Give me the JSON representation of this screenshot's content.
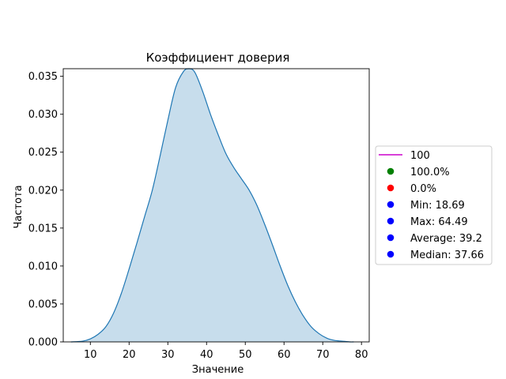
{
  "chart_data": {
    "type": "area",
    "title": "Коэффициент доверия",
    "xlabel": "Значение",
    "ylabel": "Частота",
    "xlim": [
      3,
      82
    ],
    "ylim": [
      0,
      0.036
    ],
    "xticks": [
      "10",
      "20",
      "30",
      "40",
      "50",
      "60",
      "70",
      "80"
    ],
    "yticks": [
      "0.000",
      "0.005",
      "0.010",
      "0.015",
      "0.020",
      "0.025",
      "0.030",
      "0.035"
    ],
    "grid": false,
    "legend_position": "center-right outside",
    "series": [
      {
        "style": "kde-filled",
        "color": "#1f77b4",
        "x": [
          5,
          8,
          10,
          12,
          14,
          16,
          18,
          20,
          22,
          24,
          26,
          28,
          30,
          32,
          34,
          35.5,
          37,
          39,
          41,
          43,
          45,
          47,
          49,
          51,
          53,
          55,
          57,
          59,
          61,
          63,
          65,
          67,
          69,
          71,
          73,
          75,
          77,
          78
        ],
        "y": [
          0.0,
          0.0001,
          0.0004,
          0.001,
          0.002,
          0.0038,
          0.0064,
          0.0096,
          0.013,
          0.0165,
          0.02,
          0.0245,
          0.0292,
          0.0335,
          0.0356,
          0.036,
          0.0355,
          0.033,
          0.03,
          0.0273,
          0.0248,
          0.023,
          0.0215,
          0.02,
          0.018,
          0.0155,
          0.0128,
          0.01,
          0.0074,
          0.0052,
          0.0034,
          0.002,
          0.0011,
          0.0005,
          0.0002,
          0.0001,
          0.0,
          0.0
        ]
      }
    ],
    "legend": [
      {
        "label": "100",
        "marker": "line",
        "color": "#cc00cc"
      },
      {
        "label": "100.0%",
        "marker": "dot",
        "color": "#008000"
      },
      {
        "label": "0.0%",
        "marker": "dot",
        "color": "#ff0000"
      },
      {
        "label": "Min: 18.69",
        "marker": "dot",
        "color": "#0000ff"
      },
      {
        "label": "Max: 64.49",
        "marker": "dot",
        "color": "#0000ff"
      },
      {
        "label": "Average: 39.2",
        "marker": "dot",
        "color": "#0000ff"
      },
      {
        "label": "Median: 37.66",
        "marker": "dot",
        "color": "#0000ff"
      }
    ]
  }
}
